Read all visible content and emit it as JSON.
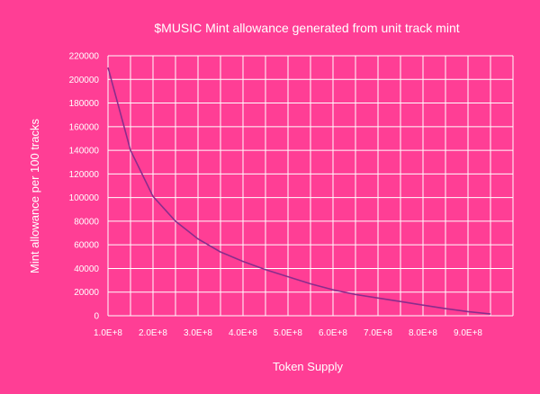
{
  "chart_data": {
    "type": "line",
    "title": "$MUSIC Mint allowance generated from unit track mint",
    "xlabel": "Token Supply",
    "ylabel": "Mint allowance per 100 tracks",
    "xlim": [
      100000000,
      1000000000
    ],
    "ylim": [
      0,
      220000
    ],
    "x_tick_labels": [
      "1.0E+8",
      "2.0E+8",
      "3.0E+8",
      "4.0E+8",
      "5.0E+8",
      "6.0E+8",
      "7.0E+8",
      "8.0E+8",
      "9.0E+8"
    ],
    "x_ticks": [
      100000000,
      200000000,
      300000000,
      400000000,
      500000000,
      600000000,
      700000000,
      800000000,
      900000000
    ],
    "y_ticks": [
      0,
      20000,
      40000,
      60000,
      80000,
      100000,
      120000,
      140000,
      160000,
      180000,
      200000,
      220000
    ],
    "y_tick_labels": [
      "0",
      "20000",
      "40000",
      "60000",
      "80000",
      "100000",
      "120000",
      "140000",
      "160000",
      "180000",
      "200000",
      "220000"
    ],
    "grid": true,
    "series": [
      {
        "x": [
          100000000,
          150000000,
          200000000,
          250000000,
          300000000,
          350000000,
          400000000,
          450000000,
          500000000,
          550000000,
          600000000,
          650000000,
          700000000,
          750000000,
          800000000,
          850000000,
          900000000,
          950000000
        ],
        "values": [
          210000,
          140000,
          101000,
          80000,
          65000,
          54000,
          46000,
          39000,
          33000,
          27000,
          22000,
          18000,
          15000,
          12000,
          9000,
          6000,
          3500,
          1500
        ]
      }
    ]
  },
  "colors": {
    "background": "#ff3e95",
    "grid": "#ffffff",
    "line": "#8a2d8c",
    "text": "#ffffff"
  }
}
